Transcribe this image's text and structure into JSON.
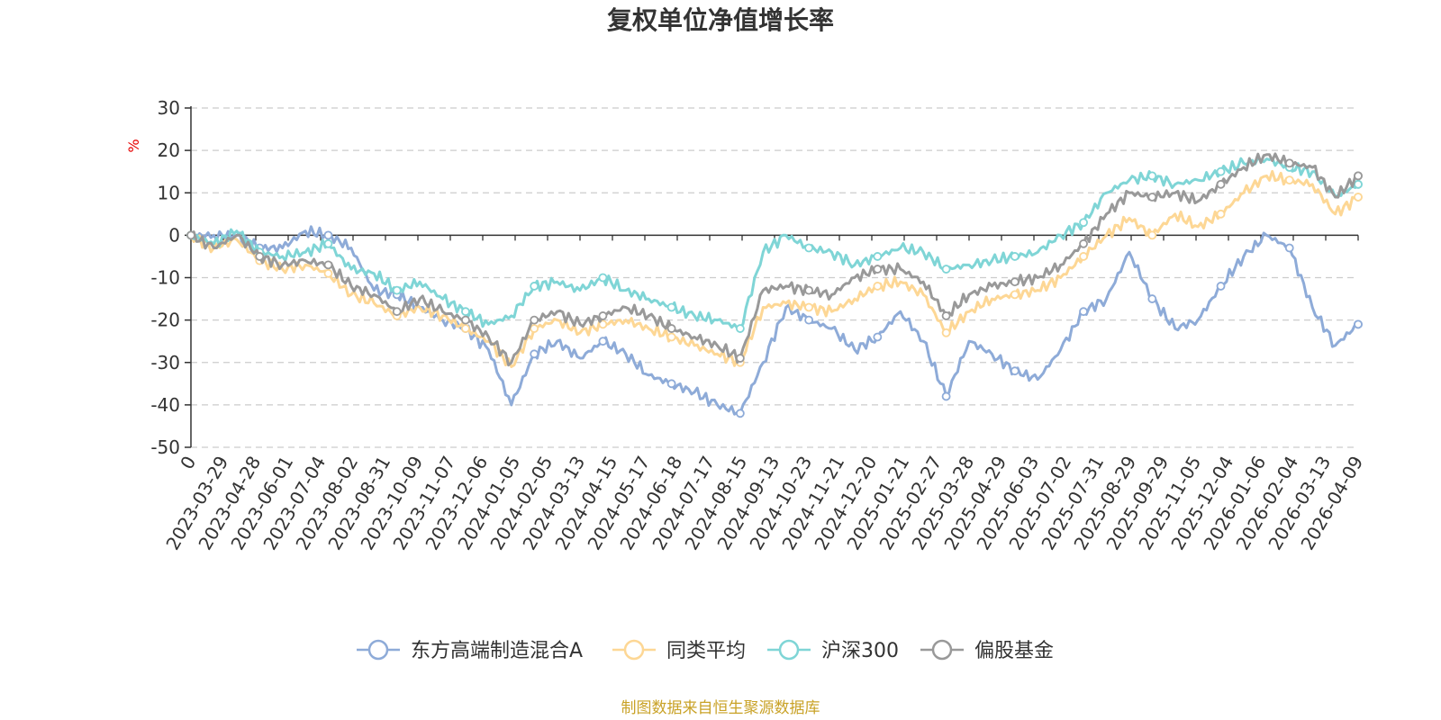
{
  "chart_data": {
    "type": "line",
    "title": "复权单位净值增长率",
    "ylabel": "%",
    "ylim": [
      -50,
      30
    ],
    "yticks": [
      "30",
      "20",
      "10",
      "0",
      "-10",
      "-20",
      "-30",
      "-40",
      "-50"
    ],
    "x_ticks": [
      "0",
      "2023-03-29",
      "2023-04-28",
      "2023-06-01",
      "2023-07-04",
      "2023-08-02",
      "2023-08-31",
      "2023-10-09",
      "2023-11-07",
      "2023-12-06",
      "2024-01-05",
      "2024-02-05",
      "2024-03-13",
      "2024-04-15",
      "2024-05-17",
      "2024-06-18",
      "2024-07-17",
      "2024-08-15",
      "2024-09-13",
      "2024-10-23",
      "2024-11-21",
      "2024-12-20",
      "2025-01-21",
      "2025-02-27",
      "2025-03-28",
      "2025-04-29",
      "2025-06-03",
      "2025-07-02",
      "2025-07-31",
      "2025-08-29",
      "2025-09-29",
      "2025-11-05",
      "2025-12-04",
      "2026-01-06",
      "2026-02-04",
      "2026-03-13",
      "2026-04-09"
    ],
    "grid": "horizontal-dashed",
    "legend_position": "bottom",
    "series": [
      {
        "name": "东方高端制造混合A",
        "color": "#8eabd8",
        "values": [
          0,
          0,
          0,
          -3,
          -3,
          1,
          0,
          -3,
          -13,
          -14,
          -17,
          -20,
          -22,
          -27,
          -40,
          -28,
          -25,
          -29,
          -25,
          -28,
          -33,
          -35,
          -37,
          -40,
          -42,
          -30,
          -17,
          -20,
          -22,
          -27,
          -24,
          -18,
          -25,
          -38,
          -25,
          -28,
          -32,
          -34,
          -27,
          -18,
          -15,
          -4,
          -15,
          -22,
          -20,
          -12,
          -5,
          0,
          -3,
          -17,
          -26,
          -21
        ]
      },
      {
        "name": "同类平均",
        "color": "#fdd795",
        "values": [
          0,
          -3,
          -1,
          -6,
          -8,
          -7,
          -9,
          -14,
          -16,
          -19,
          -17,
          -19,
          -22,
          -25,
          -31,
          -22,
          -20,
          -23,
          -21,
          -20,
          -22,
          -24,
          -26,
          -28,
          -30,
          -17,
          -16,
          -17,
          -18,
          -15,
          -12,
          -11,
          -14,
          -23,
          -18,
          -15,
          -14,
          -13,
          -10,
          -5,
          0,
          4,
          0,
          5,
          2,
          5,
          10,
          14,
          13,
          12,
          5,
          9
        ]
      },
      {
        "name": "沪深300",
        "color": "#7fd5d6",
        "values": [
          0,
          -2,
          1,
          -4,
          -5,
          -4,
          -2,
          -8,
          -9,
          -13,
          -11,
          -15,
          -18,
          -21,
          -19,
          -12,
          -11,
          -13,
          -10,
          -13,
          -15,
          -17,
          -19,
          -20,
          -22,
          -4,
          0,
          -3,
          -4,
          -7,
          -5,
          -3,
          -4,
          -8,
          -7,
          -6,
          -5,
          -4,
          0,
          3,
          10,
          13,
          14,
          12,
          13,
          15,
          17,
          18,
          16,
          15,
          9,
          12
        ]
      },
      {
        "name": "偏股基金",
        "color": "#999999",
        "values": [
          0,
          -3,
          0,
          -5,
          -7,
          -6,
          -7,
          -12,
          -14,
          -18,
          -15,
          -18,
          -20,
          -24,
          -30,
          -20,
          -18,
          -21,
          -19,
          -17,
          -19,
          -22,
          -24,
          -26,
          -29,
          -13,
          -12,
          -13,
          -14,
          -10,
          -8,
          -8,
          -11,
          -19,
          -14,
          -12,
          -11,
          -10,
          -7,
          -2,
          5,
          10,
          9,
          10,
          8,
          12,
          16,
          19,
          17,
          16,
          9,
          14
        ]
      }
    ]
  },
  "source_note": "制图数据来自恒生聚源数据库"
}
